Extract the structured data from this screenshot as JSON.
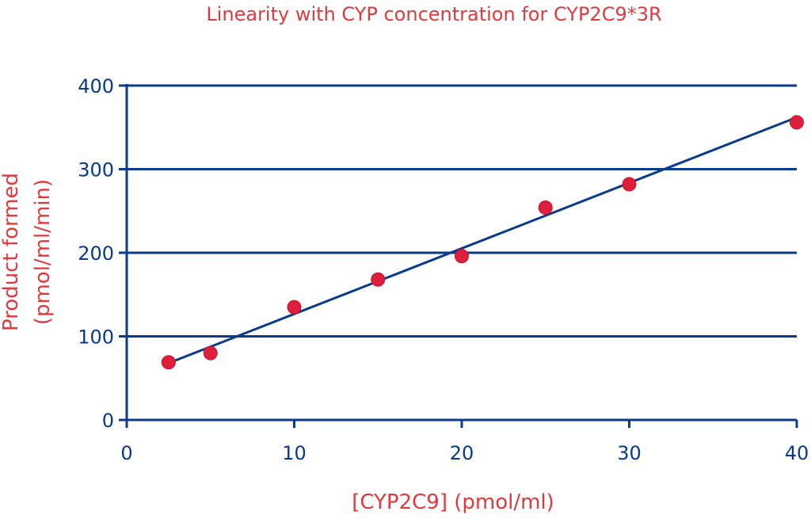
{
  "chart_data": {
    "type": "scatter",
    "title": "Linearity with CYP concentration for CYP2C9*3R",
    "xlabel": "[CYP2C9] (pmol/ml)",
    "ylabel_line1": "Product formed",
    "ylabel_line2": "(pmol/ml/min)",
    "xlim": [
      0,
      40
    ],
    "ylim": [
      0,
      400
    ],
    "x_ticks": [
      0,
      10,
      20,
      30,
      40
    ],
    "y_ticks": [
      0,
      100,
      200,
      300,
      400
    ],
    "grid": "horizontal",
    "series": [
      {
        "points": [
          [
            2.5,
            69
          ],
          [
            5,
            80
          ],
          [
            10,
            135
          ],
          [
            15,
            168
          ],
          [
            20,
            196
          ],
          [
            25,
            254
          ],
          [
            30,
            282
          ],
          [
            40,
            356
          ]
        ]
      }
    ],
    "trendline": {
      "x": [
        2.5,
        40
      ],
      "y": [
        68,
        362
      ]
    },
    "colors": {
      "text_red": "#e03a3e",
      "axis_blue": "#0a3a8c",
      "marker": "#dd1f3c"
    }
  }
}
